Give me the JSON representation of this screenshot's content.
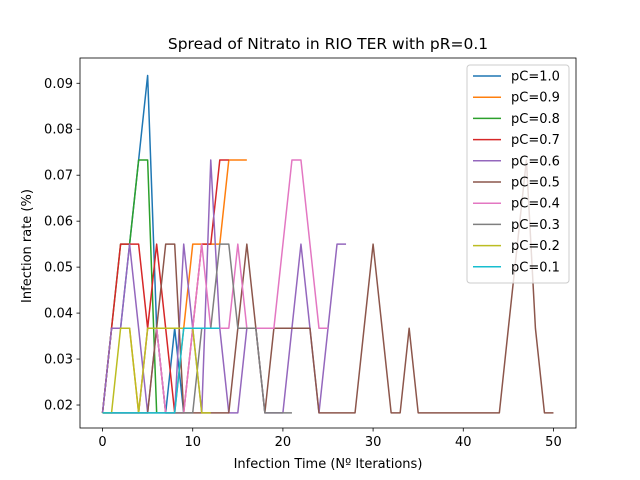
{
  "chart_data": {
    "type": "line",
    "title": "Spread of Nitrato in RIO TER with pR=0.1",
    "xlabel": "Infection Time (Nº Iterations)",
    "ylabel": "Infection rate (%)",
    "xlim": [
      -2.5,
      52.5
    ],
    "ylim": [
      0.015,
      0.0955
    ],
    "xticks": [
      0,
      10,
      20,
      30,
      40,
      50
    ],
    "yticks": [
      0.02,
      0.03,
      0.04,
      0.05,
      0.06,
      0.07,
      0.08,
      0.09
    ],
    "xtick_labels": [
      "0",
      "10",
      "20",
      "30",
      "40",
      "50"
    ],
    "ytick_labels": [
      "0.02",
      "0.03",
      "0.04",
      "0.05",
      "0.06",
      "0.07",
      "0.08",
      "0.09"
    ],
    "grid": false,
    "legend_position": "top-right",
    "series": [
      {
        "name": "pC=1.0",
        "color": "#1f77b4",
        "x": [
          0,
          1,
          2,
          3,
          4,
          5,
          6,
          7,
          8,
          9
        ],
        "y": [
          0.0183,
          0.0367,
          0.0367,
          0.055,
          0.0733,
          0.0917,
          0.0367,
          0.0183,
          0.0367,
          0.0183
        ]
      },
      {
        "name": "pC=0.9",
        "color": "#ff7f0e",
        "x": [
          0,
          1,
          2,
          3,
          4,
          5,
          6,
          7,
          8,
          9,
          10,
          11,
          12,
          13,
          14,
          15,
          16
        ],
        "y": [
          0.0183,
          0.0367,
          0.0367,
          0.0367,
          0.0183,
          0.0367,
          0.0367,
          0.0183,
          0.0183,
          0.0367,
          0.055,
          0.055,
          0.055,
          0.055,
          0.0733,
          0.0733,
          0.0733
        ]
      },
      {
        "name": "pC=0.8",
        "color": "#2ca02c",
        "x": [
          0,
          1,
          2,
          3,
          4,
          5,
          6
        ],
        "y": [
          0.0183,
          0.0367,
          0.055,
          0.055,
          0.0733,
          0.0733,
          0.0183
        ]
      },
      {
        "name": "pC=0.7",
        "color": "#d62728",
        "x": [
          0,
          1,
          2,
          3,
          4,
          5,
          6,
          7,
          8,
          9,
          10,
          11,
          12,
          13,
          14
        ],
        "y": [
          0.0183,
          0.0367,
          0.055,
          0.055,
          0.055,
          0.0367,
          0.055,
          0.0367,
          0.0183,
          0.0183,
          0.0367,
          0.055,
          0.055,
          0.0733,
          0.0733
        ]
      },
      {
        "name": "pC=0.6",
        "color": "#9467bd",
        "x": [
          0,
          1,
          2,
          3,
          4,
          5,
          6,
          7,
          8,
          9,
          10,
          11,
          12,
          13,
          14,
          15,
          16,
          17,
          18,
          19,
          20,
          21,
          22,
          23,
          24,
          25,
          26,
          27
        ],
        "y": [
          0.0183,
          0.0367,
          0.0367,
          0.055,
          0.0367,
          0.0183,
          0.0367,
          0.0183,
          0.0183,
          0.055,
          0.0367,
          0.0183,
          0.0733,
          0.0367,
          0.0183,
          0.0183,
          0.0367,
          0.0367,
          0.0183,
          0.0183,
          0.0183,
          0.0367,
          0.055,
          0.0367,
          0.0183,
          0.0367,
          0.055,
          0.055
        ]
      },
      {
        "name": "pC=0.5",
        "color": "#8c564b",
        "x": [
          0,
          1,
          2,
          3,
          4,
          5,
          6,
          7,
          8,
          9,
          10,
          11,
          12,
          13,
          14,
          15,
          16,
          17,
          18,
          19,
          20,
          21,
          22,
          23,
          24,
          25,
          26,
          27,
          28,
          29,
          30,
          31,
          32,
          33,
          34,
          35,
          36,
          37,
          38,
          39,
          40,
          41,
          42,
          43,
          44,
          45,
          46,
          47,
          48,
          49,
          50
        ],
        "y": [
          0.0183,
          0.0183,
          0.0183,
          0.0183,
          0.0183,
          0.0183,
          0.0367,
          0.055,
          0.055,
          0.0183,
          0.0183,
          0.0183,
          0.0183,
          0.0183,
          0.0183,
          0.0367,
          0.055,
          0.0367,
          0.0183,
          0.0367,
          0.0367,
          0.0367,
          0.0367,
          0.0367,
          0.0183,
          0.0183,
          0.0183,
          0.0183,
          0.0183,
          0.0367,
          0.055,
          0.0367,
          0.0183,
          0.0183,
          0.0367,
          0.0183,
          0.0183,
          0.0183,
          0.0183,
          0.0183,
          0.0183,
          0.0183,
          0.0183,
          0.0183,
          0.0183,
          0.0367,
          0.055,
          0.0733,
          0.0367,
          0.0183,
          0.0183
        ]
      },
      {
        "name": "pC=0.4",
        "color": "#e377c2",
        "x": [
          0,
          1,
          2,
          3,
          4,
          5,
          6,
          7,
          8,
          9,
          10,
          11,
          12,
          13,
          14,
          15,
          16,
          17,
          18,
          19,
          20,
          21,
          22,
          23,
          24,
          25
        ],
        "y": [
          0.0183,
          0.0183,
          0.0183,
          0.0183,
          0.0183,
          0.0367,
          0.0367,
          0.0183,
          0.0183,
          0.0183,
          0.0367,
          0.055,
          0.0367,
          0.0367,
          0.0367,
          0.055,
          0.0367,
          0.0367,
          0.0367,
          0.0367,
          0.055,
          0.0733,
          0.0733,
          0.055,
          0.0367,
          0.0367
        ]
      },
      {
        "name": "pC=0.3",
        "color": "#7f7f7f",
        "x": [
          0,
          1,
          2,
          3,
          4,
          5,
          6,
          7,
          8,
          9,
          10,
          11,
          12,
          13,
          14,
          15,
          16,
          17,
          18,
          19,
          20,
          21
        ],
        "y": [
          0.0183,
          0.0183,
          0.0183,
          0.0183,
          0.0183,
          0.0183,
          0.0183,
          0.0183,
          0.0183,
          0.0183,
          0.0183,
          0.0367,
          0.0367,
          0.055,
          0.055,
          0.0367,
          0.0367,
          0.0367,
          0.0183,
          0.0183,
          0.0183,
          0.0183
        ]
      },
      {
        "name": "pC=0.2",
        "color": "#bcbd22",
        "x": [
          0,
          1,
          2,
          3,
          4,
          5,
          6,
          7,
          8,
          9,
          10,
          11,
          12
        ],
        "y": [
          0.0183,
          0.0183,
          0.0367,
          0.0367,
          0.0183,
          0.0367,
          0.0367,
          0.0367,
          0.0367,
          0.0367,
          0.0367,
          0.0183,
          0.0183
        ]
      },
      {
        "name": "pC=0.1",
        "color": "#17becf",
        "x": [
          0,
          1,
          2,
          3,
          4,
          5,
          6,
          7,
          8,
          9,
          10,
          11,
          12,
          13
        ],
        "y": [
          0.0183,
          0.0183,
          0.0183,
          0.0183,
          0.0183,
          0.0183,
          0.0183,
          0.0183,
          0.0183,
          0.0367,
          0.0367,
          0.0367,
          0.0367,
          0.0367
        ]
      }
    ]
  }
}
